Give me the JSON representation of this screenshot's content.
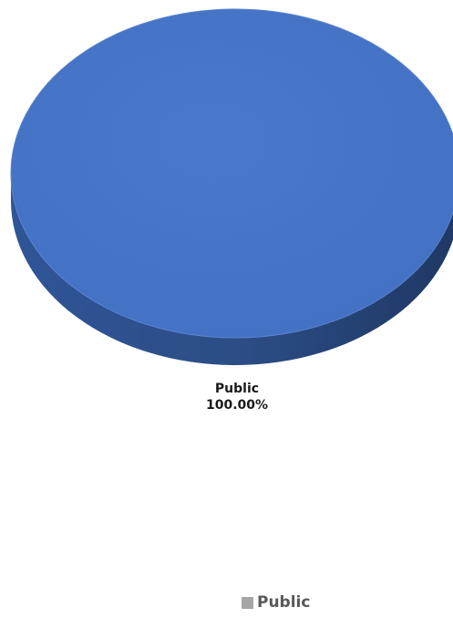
{
  "chart_data": {
    "type": "pie",
    "title": "",
    "categories": [
      "Public"
    ],
    "values": [
      100.0
    ],
    "data_labels": [
      {
        "category": "Public",
        "percent": "100.00%"
      }
    ],
    "legend": {
      "placement": "bottom",
      "entries": [
        "Public"
      ]
    },
    "colors": {
      "slice_top": "#4472c4",
      "slice_side": "#2c4d86",
      "legend_swatch": "#a6a6a6"
    }
  }
}
